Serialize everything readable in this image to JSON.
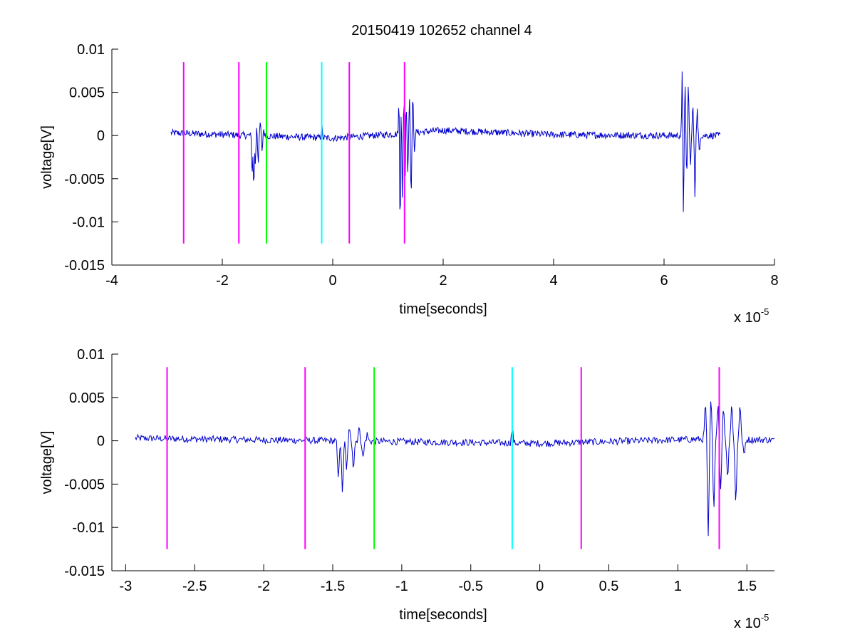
{
  "figure": {
    "title": "20150419 102652 channel 4",
    "background": "#ffffff"
  },
  "chart_data": [
    {
      "type": "line",
      "title": "20150419 102652 channel 4",
      "xlabel": "time[seconds]",
      "ylabel": "voltage[V]",
      "x_exponent": {
        "base": "x 10",
        "power": "-5"
      },
      "xlim": [
        -4,
        8
      ],
      "ylim": [
        -0.015,
        0.01
      ],
      "xticks": [
        -4,
        -2,
        0,
        2,
        4,
        6,
        8
      ],
      "xtick_labels": [
        "-4",
        "-2",
        "0",
        "2",
        "4",
        "6",
        "8"
      ],
      "yticks": [
        -0.015,
        -0.01,
        -0.005,
        0,
        0.005,
        0.01
      ],
      "ytick_labels": [
        "-0.015",
        "-0.01",
        "-0.005",
        "0",
        "0.005",
        "0.01"
      ],
      "grid": false,
      "series": [
        {
          "color": "#0000cc",
          "x_range": [
            -2.93,
            7.02
          ],
          "baseline_noise": 0.0004,
          "slow_drift": [
            [
              -2.93,
              0.0003
            ],
            [
              0.0,
              -0.0003
            ],
            [
              1.2,
              0.0002
            ],
            [
              2.0,
              0.0006
            ],
            [
              4.0,
              0.0001
            ],
            [
              6.0,
              0.0
            ],
            [
              7.02,
              0.0
            ]
          ],
          "features": [
            [
              -1.46,
              -0.0045
            ],
            [
              -1.43,
              -0.0062
            ],
            [
              -1.4,
              -0.0035
            ],
            [
              -1.38,
              0.0012
            ],
            [
              -1.35,
              -0.003
            ],
            [
              -1.31,
              0.0015
            ],
            [
              -1.28,
              -0.002
            ],
            [
              -1.25,
              0.0008
            ],
            [
              -0.2,
              0.0016
            ],
            [
              1.2,
              0.0041
            ],
            [
              1.22,
              -0.0115
            ],
            [
              1.24,
              0.0043
            ],
            [
              1.26,
              -0.008
            ],
            [
              1.29,
              0.0041
            ],
            [
              1.31,
              -0.006
            ],
            [
              1.33,
              0.0038
            ],
            [
              1.36,
              -0.0045
            ],
            [
              1.39,
              0.004
            ],
            [
              1.42,
              -0.0075
            ],
            [
              1.45,
              0.0041
            ],
            [
              1.48,
              -0.002
            ],
            [
              6.33,
              0.0077
            ],
            [
              6.35,
              -0.0092
            ],
            [
              6.38,
              0.0055
            ],
            [
              6.41,
              -0.0045
            ],
            [
              6.44,
              0.006
            ],
            [
              6.48,
              -0.0035
            ],
            [
              6.52,
              0.0035
            ],
            [
              6.56,
              -0.007
            ],
            [
              6.6,
              0.003
            ],
            [
              6.64,
              -0.002
            ]
          ]
        }
      ],
      "markers": [
        {
          "x": -2.7,
          "color": "#ff00ff"
        },
        {
          "x": -1.7,
          "color": "#ff00ff"
        },
        {
          "x": -1.2,
          "color": "#00ff00"
        },
        {
          "x": -0.2,
          "color": "#00ffff"
        },
        {
          "x": 0.3,
          "color": "#ff00ff"
        },
        {
          "x": 1.3,
          "color": "#ff00ff"
        }
      ],
      "marker_range": [
        -0.0125,
        0.0085
      ]
    },
    {
      "type": "line",
      "xlabel": "time[seconds]",
      "ylabel": "voltage[V]",
      "x_exponent": {
        "base": "x 10",
        "power": "-5"
      },
      "xlim": [
        -3.1,
        1.7
      ],
      "ylim": [
        -0.015,
        0.01
      ],
      "xticks": [
        -3,
        -2.5,
        -2,
        -1.5,
        -1,
        -0.5,
        0,
        0.5,
        1,
        1.5
      ],
      "xtick_labels": [
        "-3",
        "-2.5",
        "-2",
        "-1.5",
        "-1",
        "-0.5",
        "0",
        "0.5",
        "1",
        "1.5"
      ],
      "yticks": [
        -0.015,
        -0.01,
        -0.005,
        0,
        0.005,
        0.01
      ],
      "ytick_labels": [
        "-0.015",
        "-0.01",
        "-0.005",
        "0",
        "0.005",
        "0.01"
      ],
      "grid": false,
      "series": [
        {
          "color": "#0000cc",
          "x_range": [
            -2.93,
            1.7
          ],
          "baseline_noise": 0.0004,
          "slow_drift": [
            [
              -2.93,
              0.0003
            ],
            [
              -2.0,
              0.0001
            ],
            [
              0.0,
              -0.0003
            ],
            [
              1.2,
              0.0002
            ],
            [
              1.7,
              0.0001
            ]
          ],
          "features": [
            [
              -1.46,
              -0.0045
            ],
            [
              -1.43,
              -0.0062
            ],
            [
              -1.4,
              -0.0035
            ],
            [
              -1.38,
              0.0012
            ],
            [
              -1.35,
              -0.003
            ],
            [
              -1.31,
              0.0015
            ],
            [
              -1.28,
              -0.002
            ],
            [
              -1.25,
              0.0008
            ],
            [
              -0.2,
              0.0016
            ],
            [
              1.2,
              0.0041
            ],
            [
              1.22,
              -0.0115
            ],
            [
              1.24,
              0.0043
            ],
            [
              1.26,
              -0.008
            ],
            [
              1.29,
              0.0041
            ],
            [
              1.31,
              -0.006
            ],
            [
              1.33,
              0.0038
            ],
            [
              1.36,
              -0.0045
            ],
            [
              1.39,
              0.004
            ],
            [
              1.42,
              -0.0075
            ],
            [
              1.45,
              0.0041
            ],
            [
              1.48,
              -0.002
            ]
          ]
        }
      ],
      "markers": [
        {
          "x": -2.7,
          "color": "#ff00ff"
        },
        {
          "x": -1.7,
          "color": "#ff00ff"
        },
        {
          "x": -1.2,
          "color": "#00ff00"
        },
        {
          "x": -0.2,
          "color": "#00ffff"
        },
        {
          "x": 0.3,
          "color": "#ff00ff"
        },
        {
          "x": 1.3,
          "color": "#ff00ff"
        }
      ],
      "marker_range": [
        -0.0125,
        0.0085
      ]
    }
  ]
}
